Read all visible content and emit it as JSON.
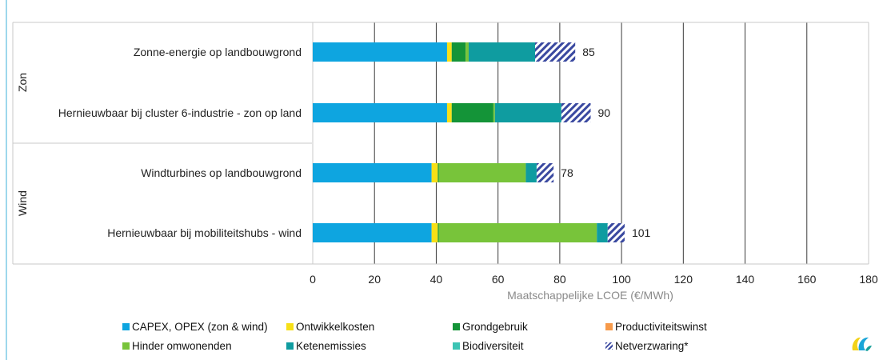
{
  "chart_data": {
    "type": "bar",
    "orientation": "horizontal",
    "stacked": true,
    "xlabel": "Maatschappelijke LCOE (€/MWh)",
    "xlim": [
      0,
      180
    ],
    "xticks": [
      0,
      20,
      40,
      60,
      80,
      100,
      120,
      140,
      160,
      180
    ],
    "grid": "vertical",
    "groups": [
      {
        "label": "Zon",
        "categories": [
          "Zonne-energie op landbouwgrond",
          "Hernieuwbaar bij cluster 6-industrie - zon op land"
        ]
      },
      {
        "label": "Wind",
        "categories": [
          "Windturbines op landbouwgrond",
          "Hernieuwbaar bij mobiliteitshubs - wind"
        ]
      }
    ],
    "categories": [
      "Zonne-energie op landbouwgrond",
      "Hernieuwbaar bij cluster 6-industrie - zon op land",
      "Windturbines op landbouwgrond",
      "Hernieuwbaar bij mobiliteitshubs - wind"
    ],
    "totals": [
      85,
      90,
      78,
      101
    ],
    "series": [
      {
        "name": "CAPEX, OPEX (zon & wind)",
        "color": "#0ea5e0",
        "pattern": "solid",
        "values": [
          43.5,
          43.5,
          38.5,
          38.5
        ]
      },
      {
        "name": "Ontwikkelkosten",
        "color": "#f7e017",
        "pattern": "solid",
        "values": [
          1.5,
          1.5,
          2,
          2
        ]
      },
      {
        "name": "Grondgebruik",
        "color": "#149438",
        "pattern": "solid",
        "values": [
          4.5,
          13.5,
          0.3,
          0.3
        ]
      },
      {
        "name": "Productiviteitswinst",
        "color": "#f79a4a",
        "pattern": "solid",
        "values": [
          0,
          0,
          0,
          0
        ]
      },
      {
        "name": "Hinder omwonenden",
        "color": "#78c43a",
        "pattern": "solid",
        "values": [
          1,
          0.5,
          28.2,
          51.2
        ]
      },
      {
        "name": "Ketenemissies",
        "color": "#0f9ca0",
        "pattern": "solid",
        "values": [
          21.5,
          21.5,
          3.5,
          3.5
        ]
      },
      {
        "name": "Biodiversiteit",
        "color": "#3cc4b4",
        "pattern": "solid",
        "values": [
          0,
          0,
          0,
          0
        ]
      },
      {
        "name": "Netverzwaring*",
        "color": "#3a49a0",
        "pattern": "hatch",
        "values": [
          13,
          9.5,
          5.5,
          5.5
        ]
      }
    ]
  }
}
